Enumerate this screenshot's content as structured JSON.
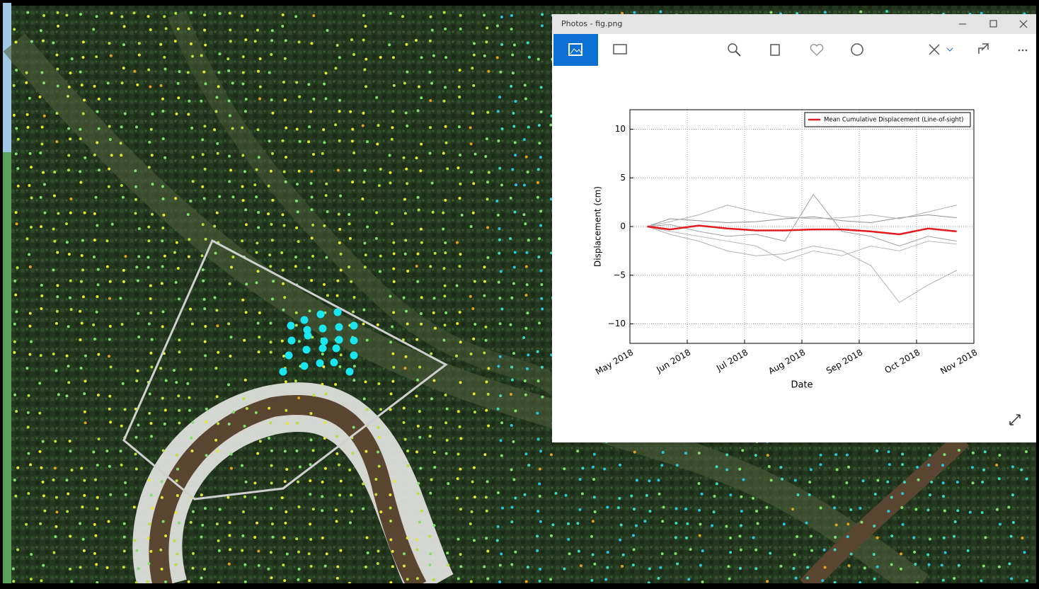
{
  "window": {
    "title": "Photos - fig.png"
  },
  "chart_data": {
    "type": "line",
    "x_label": "Date",
    "y_label": "Displacement (cm)",
    "x": [
      0.3,
      0.7,
      1.2,
      1.7,
      2.2,
      2.7,
      3.2,
      3.7,
      4.2,
      4.7,
      5.2,
      5.7
    ],
    "series": [
      {
        "name": "Mean Cumulative Displacement (Line-of-sight)",
        "color": "#e41a1c",
        "values": [
          0,
          -0.3,
          0.1,
          -0.2,
          -0.4,
          -0.4,
          -0.3,
          -0.3,
          -0.5,
          -0.8,
          -0.2,
          -0.5
        ]
      },
      {
        "color": "#b0b0b0",
        "values": [
          0,
          0.5,
          1.2,
          2.2,
          1.5,
          1.0,
          0.8,
          0.9,
          1.2,
          0.8,
          1.5,
          2.2
        ]
      },
      {
        "color": "#b0b0b0",
        "values": [
          0,
          -0.8,
          -1.5,
          -2.5,
          -3.0,
          -2.8,
          -2.0,
          -2.5,
          -4.0,
          -7.8,
          -6.0,
          -4.5
        ]
      },
      {
        "color": "#a0a0a0",
        "values": [
          0,
          0.2,
          -0.5,
          -1.0,
          -0.8,
          -1.5,
          3.3,
          -0.5,
          -1.0,
          -2.0,
          -1.0,
          -1.5
        ]
      },
      {
        "color": "#b8b8b8",
        "values": [
          0,
          -0.5,
          -1.0,
          -1.5,
          -2.0,
          -3.5,
          -2.5,
          -3.0,
          -2.0,
          -2.5,
          -1.5,
          -1.8
        ]
      },
      {
        "color": "#909090",
        "values": [
          0,
          0.8,
          0.6,
          0.4,
          0.5,
          0.8,
          1.0,
          0.6,
          0.4,
          0.9,
          1.2,
          0.9
        ]
      }
    ],
    "xlim": [
      0,
      6
    ],
    "xticks": [
      {
        "value": 0,
        "label": "May 2018"
      },
      {
        "value": 1,
        "label": "Jun 2018"
      },
      {
        "value": 2,
        "label": "Jul 2018"
      },
      {
        "value": 3,
        "label": "Aug 2018"
      },
      {
        "value": 4,
        "label": "Sep 2018"
      },
      {
        "value": 5,
        "label": "Oct 2018"
      },
      {
        "value": 6,
        "label": "Nov 2018"
      }
    ],
    "ylim": [
      -12,
      12
    ],
    "yticks": [
      {
        "value": -10,
        "label": "−10"
      },
      {
        "value": -5,
        "label": "−5"
      },
      0,
      5,
      10
    ],
    "grid": true,
    "legend": "upper right"
  }
}
